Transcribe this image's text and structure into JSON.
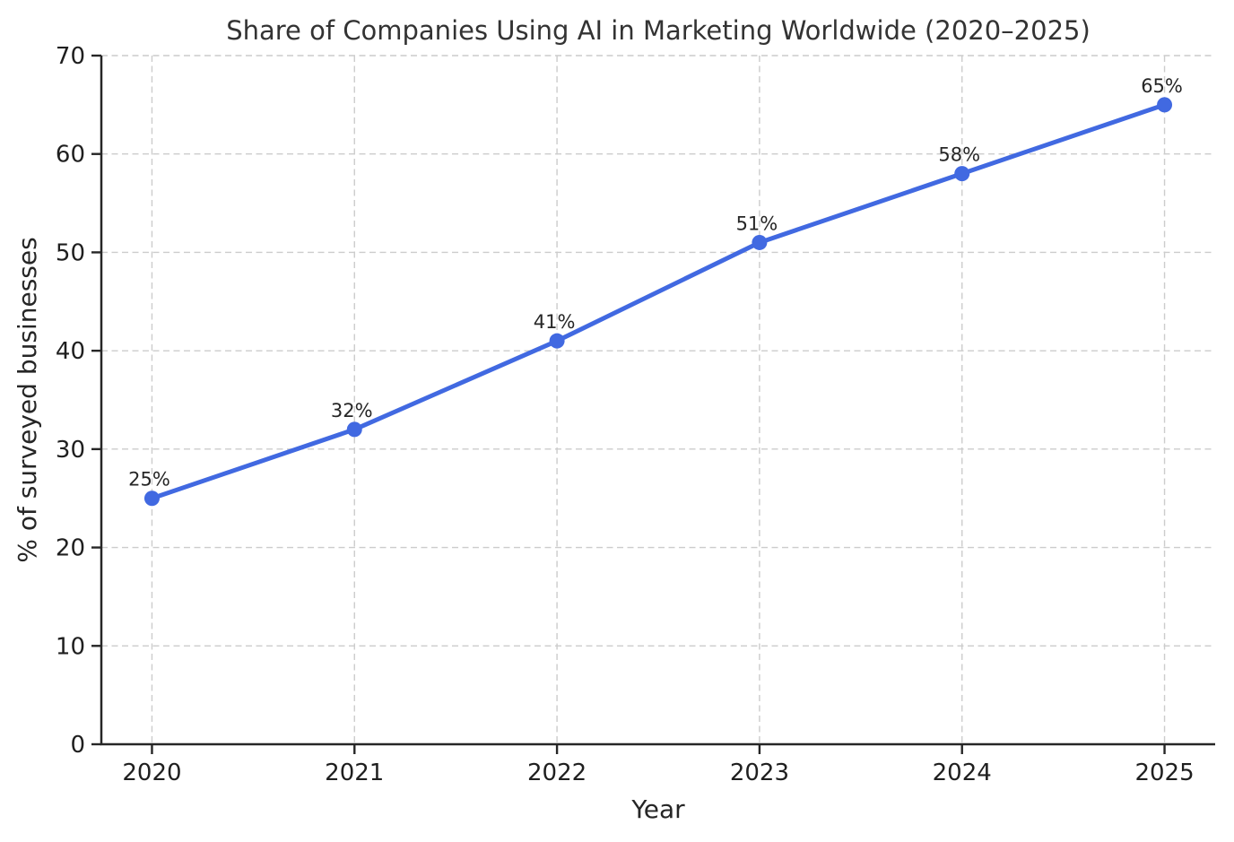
{
  "chart_data": {
    "type": "line",
    "title": "Share of Companies Using AI in Marketing Worldwide (2020–2025)",
    "xlabel": "Year",
    "ylabel": "% of surveyed businesses",
    "categories": [
      "2020",
      "2021",
      "2022",
      "2023",
      "2024",
      "2025"
    ],
    "values": [
      25,
      32,
      41,
      51,
      58,
      65
    ],
    "point_labels": [
      "25%",
      "32%",
      "41%",
      "51%",
      "58%",
      "65%"
    ],
    "ylim": [
      0,
      70
    ],
    "yticks": [
      0,
      10,
      20,
      30,
      40,
      50,
      60,
      70
    ],
    "grid": true,
    "grid_style": "dashed",
    "legend_position": "none",
    "colors": {
      "line": "#4169E1",
      "marker": "#4169E1",
      "grid": "#cccccc",
      "spine": "#262626",
      "tick": "#262626",
      "title_text": "#333333",
      "label_text": "#262626",
      "background": "#ffffff"
    }
  }
}
